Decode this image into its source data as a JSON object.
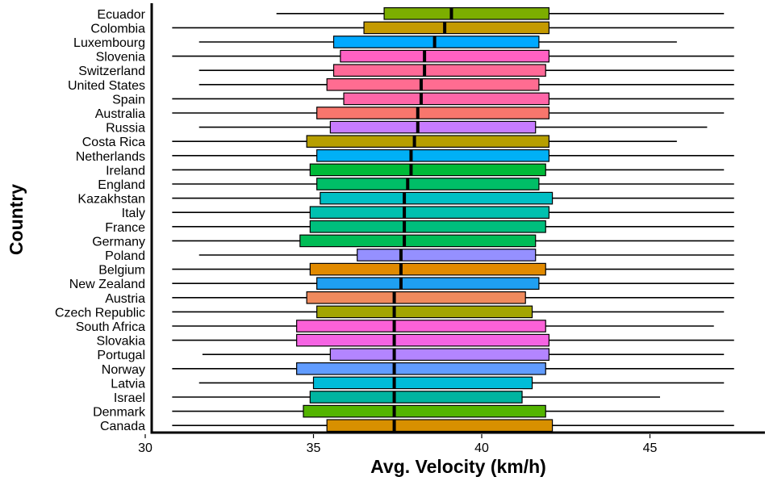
{
  "chart_data": {
    "type": "boxplot",
    "orientation": "horizontal",
    "title": "",
    "xlabel": "Avg. Velocity (km/h)",
    "ylabel": "Country",
    "xlim": [
      30,
      48
    ],
    "xticks": [
      30,
      35,
      40,
      45
    ],
    "grid": false,
    "legend": "none",
    "series": [
      {
        "name": "Ecuador",
        "whisker_low": 33.9,
        "q1": 37.1,
        "median": 39.1,
        "q3": 42.0,
        "whisker_high": 47.2,
        "color": "#7CAE00"
      },
      {
        "name": "Colombia",
        "whisker_low": 30.8,
        "q1": 36.5,
        "median": 38.9,
        "q3": 42.0,
        "whisker_high": 47.5,
        "color": "#C49A00"
      },
      {
        "name": "Luxembourg",
        "whisker_low": 31.6,
        "q1": 35.6,
        "median": 38.6,
        "q3": 41.7,
        "whisker_high": 45.8,
        "color": "#00A9FF"
      },
      {
        "name": "Slovenia",
        "whisker_low": 30.8,
        "q1": 35.8,
        "median": 38.3,
        "q3": 42.0,
        "whisker_high": 47.5,
        "color": "#FF61C3"
      },
      {
        "name": "Switzerland",
        "whisker_low": 31.6,
        "q1": 35.6,
        "median": 38.3,
        "q3": 41.9,
        "whisker_high": 47.5,
        "color": "#FF6A98"
      },
      {
        "name": "United States",
        "whisker_low": 31.6,
        "q1": 35.4,
        "median": 38.2,
        "q3": 41.7,
        "whisker_high": 47.5,
        "color": "#FF6C91"
      },
      {
        "name": "Spain",
        "whisker_low": 30.8,
        "q1": 35.9,
        "median": 38.2,
        "q3": 42.0,
        "whisker_high": 47.5,
        "color": "#FF66A8"
      },
      {
        "name": "Australia",
        "whisker_low": 30.8,
        "q1": 35.1,
        "median": 38.1,
        "q3": 42.0,
        "whisker_high": 47.2,
        "color": "#F8766D"
      },
      {
        "name": "Russia",
        "whisker_low": 31.6,
        "q1": 35.5,
        "median": 38.1,
        "q3": 41.6,
        "whisker_high": 46.7,
        "color": "#C77CFF"
      },
      {
        "name": "Costa Rica",
        "whisker_low": 30.8,
        "q1": 34.8,
        "median": 38.0,
        "q3": 42.0,
        "whisker_high": 45.8,
        "color": "#B79F00"
      },
      {
        "name": "Netherlands",
        "whisker_low": 30.8,
        "q1": 35.1,
        "median": 37.9,
        "q3": 42.0,
        "whisker_high": 47.5,
        "color": "#00B0F6"
      },
      {
        "name": "Ireland",
        "whisker_low": 30.8,
        "q1": 34.9,
        "median": 37.9,
        "q3": 41.9,
        "whisker_high": 47.2,
        "color": "#00BA38"
      },
      {
        "name": "England",
        "whisker_low": 30.8,
        "q1": 35.1,
        "median": 37.8,
        "q3": 41.7,
        "whisker_high": 47.5,
        "color": "#00BE67"
      },
      {
        "name": "Kazakhstan",
        "whisker_low": 30.8,
        "q1": 35.2,
        "median": 37.7,
        "q3": 42.1,
        "whisker_high": 47.5,
        "color": "#00BFC4"
      },
      {
        "name": "Italy",
        "whisker_low": 30.8,
        "q1": 34.9,
        "median": 37.7,
        "q3": 42.0,
        "whisker_high": 47.5,
        "color": "#00C0AF"
      },
      {
        "name": "France",
        "whisker_low": 30.8,
        "q1": 34.9,
        "median": 37.7,
        "q3": 41.9,
        "whisker_high": 47.5,
        "color": "#00BF7D"
      },
      {
        "name": "Germany",
        "whisker_low": 30.8,
        "q1": 34.6,
        "median": 37.7,
        "q3": 41.6,
        "whisker_high": 47.5,
        "color": "#00BC56"
      },
      {
        "name": "Poland",
        "whisker_low": 31.6,
        "q1": 36.3,
        "median": 37.6,
        "q3": 41.6,
        "whisker_high": 47.5,
        "color": "#9590FF"
      },
      {
        "name": "Belgium",
        "whisker_low": 30.8,
        "q1": 34.9,
        "median": 37.6,
        "q3": 41.9,
        "whisker_high": 47.5,
        "color": "#E18A00"
      },
      {
        "name": "New Zealand",
        "whisker_low": 30.8,
        "q1": 35.1,
        "median": 37.6,
        "q3": 41.7,
        "whisker_high": 47.5,
        "color": "#1F9FF2"
      },
      {
        "name": "Austria",
        "whisker_low": 30.8,
        "q1": 34.8,
        "median": 37.4,
        "q3": 41.3,
        "whisker_high": 47.5,
        "color": "#F08A5D"
      },
      {
        "name": "Czech Republic",
        "whisker_low": 30.8,
        "q1": 35.1,
        "median": 37.4,
        "q3": 41.5,
        "whisker_high": 47.2,
        "color": "#A3A500"
      },
      {
        "name": "South Africa",
        "whisker_low": 30.8,
        "q1": 34.5,
        "median": 37.4,
        "q3": 41.9,
        "whisker_high": 46.9,
        "color": "#FB61D7"
      },
      {
        "name": "Slovakia",
        "whisker_low": 30.8,
        "q1": 34.5,
        "median": 37.4,
        "q3": 42.0,
        "whisker_high": 47.5,
        "color": "#F564E3"
      },
      {
        "name": "Portugal",
        "whisker_low": 31.7,
        "q1": 35.5,
        "median": 37.4,
        "q3": 42.0,
        "whisker_high": 47.2,
        "color": "#B385FF"
      },
      {
        "name": "Norway",
        "whisker_low": 30.8,
        "q1": 34.5,
        "median": 37.4,
        "q3": 41.9,
        "whisker_high": 47.5,
        "color": "#619CFF"
      },
      {
        "name": "Latvia",
        "whisker_low": 31.6,
        "q1": 35.0,
        "median": 37.4,
        "q3": 41.5,
        "whisker_high": 47.2,
        "color": "#00BCD8"
      },
      {
        "name": "Israel",
        "whisker_low": 30.8,
        "q1": 34.9,
        "median": 37.4,
        "q3": 41.2,
        "whisker_high": 45.3,
        "color": "#00B4A0"
      },
      {
        "name": "Denmark",
        "whisker_low": 30.8,
        "q1": 34.7,
        "median": 37.4,
        "q3": 41.9,
        "whisker_high": 47.2,
        "color": "#53B400"
      },
      {
        "name": "Canada",
        "whisker_low": 30.8,
        "q1": 35.4,
        "median": 37.4,
        "q3": 42.1,
        "whisker_high": 47.5,
        "color": "#D89000"
      }
    ]
  }
}
